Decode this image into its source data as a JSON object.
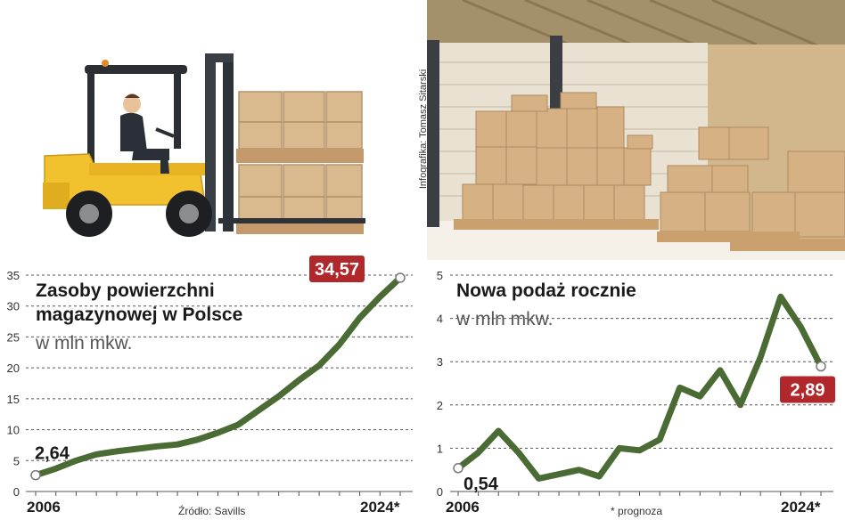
{
  "credit": "Infografika: Tomasz Sitarski",
  "source": "Źródło: Savills",
  "footnote": "* prognoza",
  "colors": {
    "line": "#4a6b34",
    "badge": "#b0282b",
    "grid": "#555555"
  },
  "chart_data": [
    {
      "type": "line",
      "title": "Zasoby powierzchni magazynowej w Polsce",
      "title_lines": [
        "Zasoby powierzchni",
        "magazynowej w Polsce"
      ],
      "subtitle": "w mln mkw.",
      "x": [
        2006,
        2007,
        2008,
        2009,
        2010,
        2011,
        2012,
        2013,
        2014,
        2015,
        2016,
        2017,
        2018,
        2019,
        2020,
        2021,
        2022,
        2023,
        2024
      ],
      "values": [
        2.64,
        3.7,
        5.0,
        6.0,
        6.5,
        6.9,
        7.3,
        7.6,
        8.4,
        9.5,
        10.8,
        13.1,
        15.4,
        18.0,
        20.4,
        23.8,
        28.1,
        31.5,
        34.57
      ],
      "yticks": [
        "0",
        "5",
        "10",
        "15",
        "20",
        "25",
        "30",
        "35"
      ],
      "ylim": [
        0,
        35
      ],
      "x_tick_labels": [
        "2006",
        "2024*"
      ],
      "point_labels": [
        {
          "label": "2,64",
          "index": 0,
          "style": "plain"
        },
        {
          "label": "34,57",
          "index": 18,
          "style": "badge"
        }
      ],
      "grid": "dashed-horizontal"
    },
    {
      "type": "line",
      "title": "Nowa podaż rocznie",
      "title_lines": [
        "Nowa podaż rocznie"
      ],
      "subtitle": "w mln mkw.",
      "x": [
        2006,
        2007,
        2008,
        2009,
        2010,
        2011,
        2012,
        2013,
        2014,
        2015,
        2016,
        2017,
        2018,
        2019,
        2020,
        2021,
        2022,
        2023,
        2024
      ],
      "values": [
        0.54,
        0.9,
        1.4,
        0.9,
        0.3,
        0.4,
        0.5,
        0.35,
        1.0,
        0.95,
        1.2,
        2.4,
        2.2,
        2.8,
        2.0,
        3.1,
        4.5,
        3.8,
        2.89
      ],
      "yticks": [
        "0",
        "1",
        "2",
        "3",
        "4",
        "5"
      ],
      "ylim": [
        0,
        5
      ],
      "x_tick_labels": [
        "2006",
        "2024*"
      ],
      "point_labels": [
        {
          "label": "0,54",
          "index": 0,
          "style": "plain"
        },
        {
          "label": "2,89",
          "index": 18,
          "style": "badge"
        }
      ],
      "grid": "dashed-horizontal"
    }
  ]
}
